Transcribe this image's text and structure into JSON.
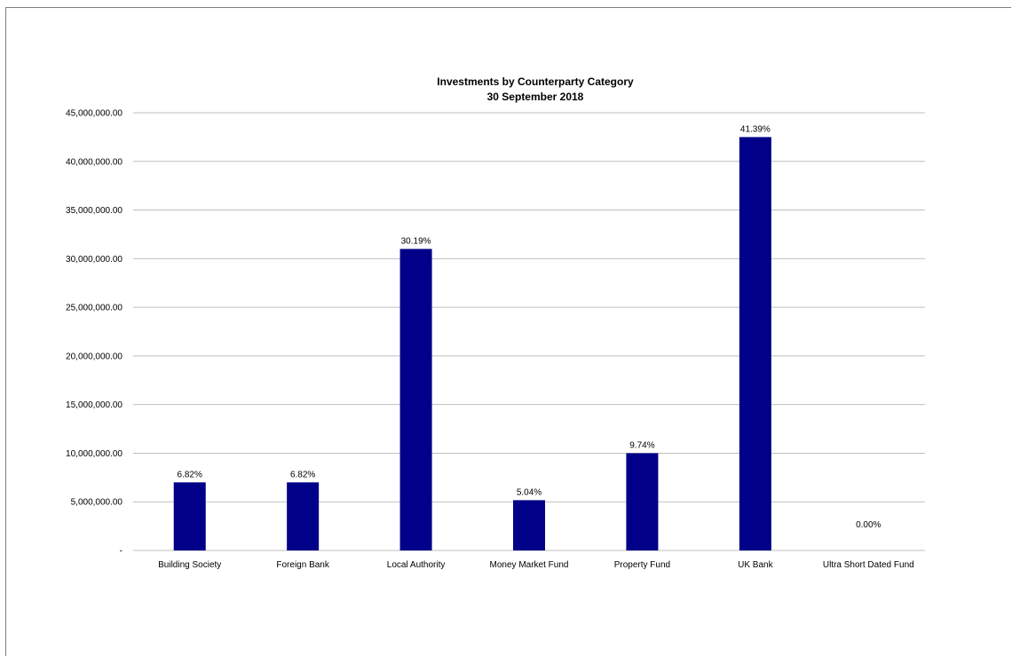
{
  "chart_data": {
    "type": "bar",
    "title": "Investments by Counterparty Category",
    "subtitle": "30 September 2018",
    "xlabel": "",
    "ylabel": "",
    "categories": [
      "Building Society",
      "Foreign Bank",
      "Local Authority",
      "Money Market Fund",
      "Property Fund",
      "UK Bank",
      "Ultra Short Dated Fund"
    ],
    "values": [
      7000000,
      7000000,
      31000000,
      5170000,
      10000000,
      42500000,
      0
    ],
    "data_labels": [
      "6.82%",
      "6.82%",
      "30.19%",
      "5.04%",
      "9.74%",
      "41.39%",
      "0.00%"
    ],
    "ylim": [
      0,
      45000000
    ],
    "yticks": [
      0,
      5000000,
      10000000,
      15000000,
      20000000,
      25000000,
      30000000,
      35000000,
      40000000,
      45000000
    ],
    "ytick_labels": [
      "-",
      "5,000,000.00",
      "10,000,000.00",
      "15,000,000.00",
      "20,000,000.00",
      "25,000,000.00",
      "30,000,000.00",
      "35,000,000.00",
      "40,000,000.00",
      "45,000,000.00"
    ],
    "grid": true,
    "legend": "none",
    "bar_color": "#000088",
    "grid_color": "#bfbfbf"
  }
}
